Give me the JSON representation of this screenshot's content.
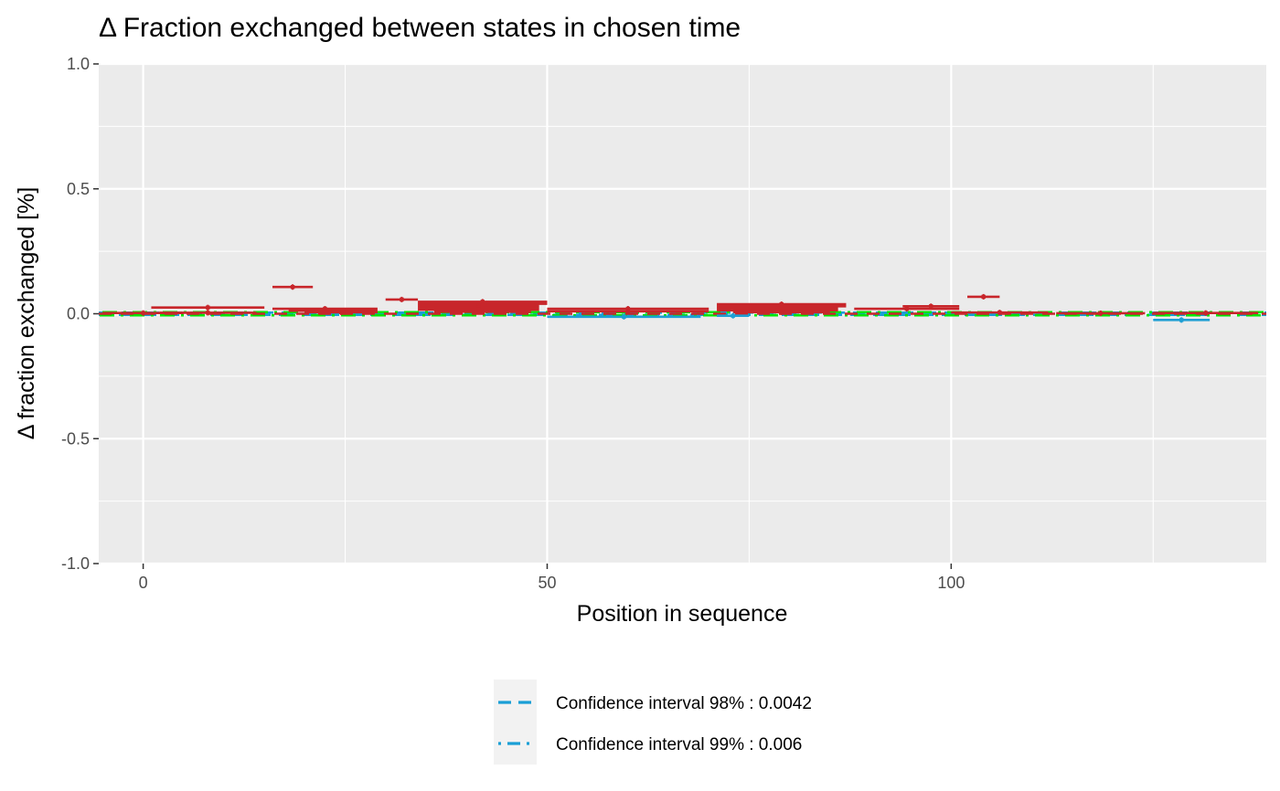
{
  "chart_data": {
    "type": "scatter",
    "title": "Δ Fraction exchanged between states in chosen time",
    "xlabel": "Position in sequence",
    "ylabel": "Δ fraction exchanged [%]",
    "xlim": [
      -5.5,
      139
    ],
    "ylim": [
      -1.0,
      1.0
    ],
    "x_ticks": [
      0,
      50,
      100
    ],
    "x_tick_labels": [
      "0",
      "50",
      "100"
    ],
    "y_ticks": [
      1.0,
      0.5,
      0.0,
      -0.5,
      -1.0
    ],
    "y_tick_labels": [
      "1.0",
      "0.5",
      "0.0",
      "-0.5",
      "-1.0"
    ],
    "grid": true,
    "legend_position": "bottom",
    "colors": {
      "significant": "#c8262b",
      "significant_light": "#e8403a",
      "not_significant": "#1f9fd4",
      "ci_98": "#1a9fd6",
      "ci_99": "#00e600",
      "panel": "#ebebeb",
      "grid": "#ffffff"
    },
    "confidence_lines": [
      {
        "name": "Confidence interval 98% : 0.0042",
        "value": 0.0042,
        "dash": "dashed"
      },
      {
        "name": "Confidence interval 99% : 0.006",
        "value": 0.006,
        "dash": "dotdash"
      }
    ],
    "peptides": [
      {
        "start": -5,
        "end": 5,
        "value": 0.003,
        "significant": true
      },
      {
        "start": 1,
        "end": 15,
        "value": 0.025,
        "significant": true
      },
      {
        "start": 2,
        "end": 14,
        "value": 0.004,
        "significant": true
      },
      {
        "start": 16,
        "end": 21,
        "value": 0.107,
        "significant": true
      },
      {
        "start": 16,
        "end": 29,
        "value": 0.02,
        "significant": true
      },
      {
        "start": 18,
        "end": 29,
        "value": 0.012,
        "significant": true
      },
      {
        "start": 20,
        "end": 29,
        "value": 0.006,
        "significant": true
      },
      {
        "start": 30,
        "end": 34,
        "value": 0.057,
        "significant": true
      },
      {
        "start": 34,
        "end": 50,
        "value": 0.048,
        "significant": true
      },
      {
        "start": 34,
        "end": 50,
        "value": 0.04,
        "significant": true
      },
      {
        "start": 34,
        "end": 49,
        "value": 0.032,
        "significant": true
      },
      {
        "start": 34,
        "end": 49,
        "value": 0.024,
        "significant": true
      },
      {
        "start": 34,
        "end": 49,
        "value": 0.016,
        "significant": true
      },
      {
        "start": 36,
        "end": 48,
        "value": 0.008,
        "significant": true
      },
      {
        "start": 50,
        "end": 70,
        "value": 0.02,
        "significant": true
      },
      {
        "start": 50,
        "end": 70,
        "value": 0.01,
        "significant": true
      },
      {
        "start": 50,
        "end": 69,
        "value": -0.012,
        "significant": false
      },
      {
        "start": 71,
        "end": 87,
        "value": 0.038,
        "significant": true
      },
      {
        "start": 71,
        "end": 87,
        "value": 0.03,
        "significant": true
      },
      {
        "start": 71,
        "end": 86,
        "value": 0.022,
        "significant": true
      },
      {
        "start": 71,
        "end": 86,
        "value": 0.014,
        "significant": true
      },
      {
        "start": 73,
        "end": 85,
        "value": 0.006,
        "significant": true
      },
      {
        "start": 71,
        "end": 75,
        "value": -0.008,
        "significant": false
      },
      {
        "start": 88,
        "end": 101,
        "value": 0.02,
        "significant": true
      },
      {
        "start": 94,
        "end": 101,
        "value": 0.03,
        "significant": true
      },
      {
        "start": 102,
        "end": 106,
        "value": 0.068,
        "significant": true
      },
      {
        "start": 100,
        "end": 112,
        "value": 0.005,
        "significant": true
      },
      {
        "start": 113,
        "end": 124,
        "value": 0.002,
        "significant": true
      },
      {
        "start": 125,
        "end": 132,
        "value": -0.025,
        "significant": false
      },
      {
        "start": 125,
        "end": 138,
        "value": 0.003,
        "significant": true
      }
    ]
  }
}
